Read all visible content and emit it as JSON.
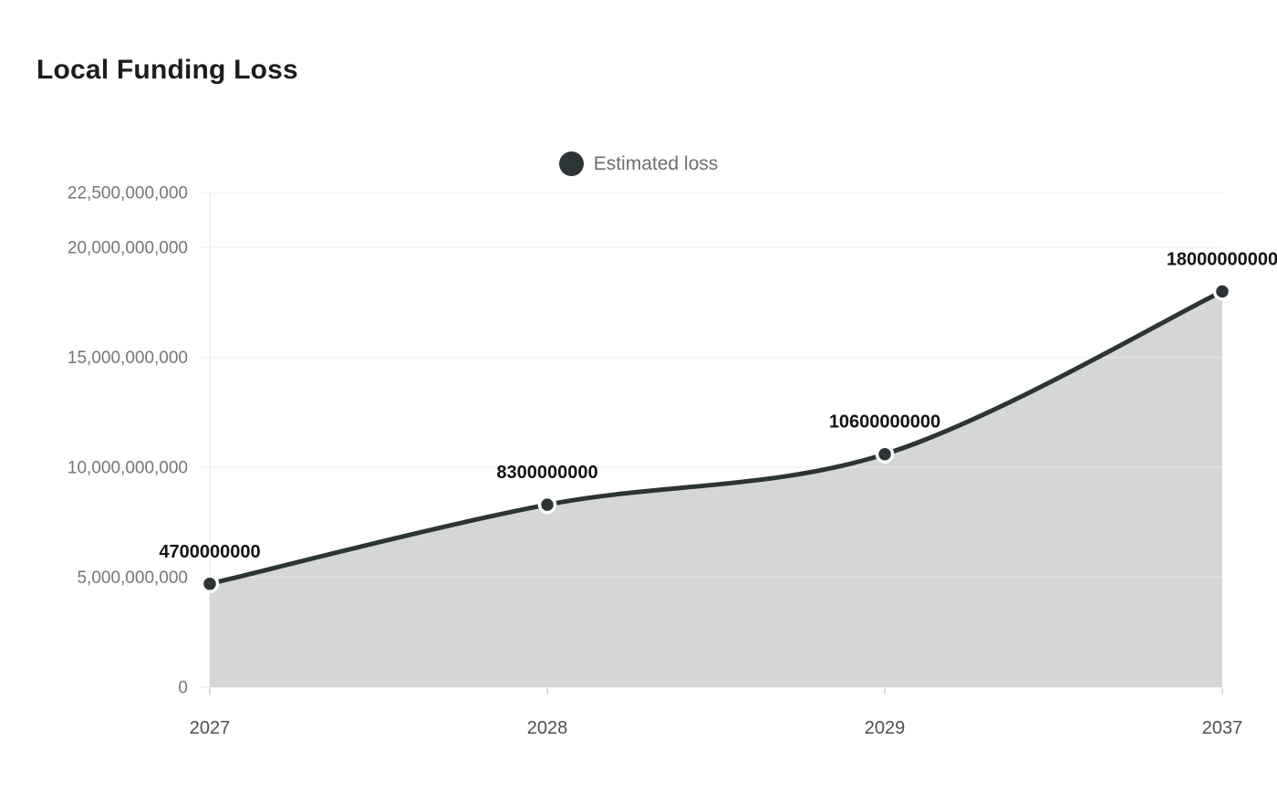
{
  "title": "Local Funding Loss",
  "legend": {
    "label": "Estimated loss",
    "marker_color": "#2d3436"
  },
  "chart_data": {
    "type": "area",
    "title": "Local Funding Loss",
    "legend_entries": [
      "Estimated loss"
    ],
    "legend_position": "top-center",
    "categories": [
      "2027",
      "2028",
      "2029",
      "2037"
    ],
    "series": [
      {
        "name": "Estimated loss",
        "values": [
          4700000000,
          8300000000,
          10600000000,
          18000000000
        ]
      }
    ],
    "point_labels": [
      "4700000000",
      "8300000000",
      "10600000000",
      "18000000000"
    ],
    "y_ticks": [
      {
        "value": 0,
        "label": "0"
      },
      {
        "value": 5000000000,
        "label": "5,000,000,000"
      },
      {
        "value": 10000000000,
        "label": "10,000,000,000"
      },
      {
        "value": 15000000000,
        "label": "15,000,000,000"
      },
      {
        "value": 20000000000,
        "label": "20,000,000,000"
      },
      {
        "value": 22500000000,
        "label": "22,500,000,000"
      }
    ],
    "ylim": [
      0,
      22500000000
    ],
    "xlabel": "",
    "ylabel": "",
    "grid": true,
    "colors": {
      "line": "#2d3436",
      "area": "#d5d6d6",
      "grid": "#e8e8e8",
      "grid_over_area": "rgba(255,255,255,0.45)",
      "tick_mark": "#bdbdbd",
      "y_tick_label": "#767676",
      "x_tick_label": "#4f4f4f",
      "data_label": "#141414",
      "marker_ring": "#ffffff"
    }
  }
}
